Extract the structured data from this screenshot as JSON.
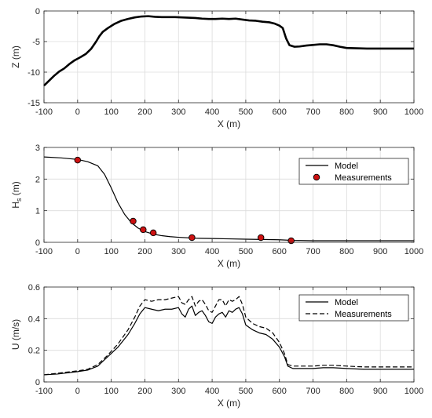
{
  "chart_data": [
    {
      "type": "line",
      "xlabel": "X (m)",
      "ylabel": "Z (m)",
      "xlim": [
        -100,
        1000
      ],
      "ylim": [
        -15,
        0
      ],
      "xticks": [
        -100,
        0,
        100,
        200,
        300,
        400,
        500,
        600,
        700,
        800,
        900,
        1000
      ],
      "yticks": [
        -15,
        -10,
        -5,
        0
      ],
      "grid": true,
      "series": [
        {
          "name": "",
          "style": "solid-thick",
          "x": [
            -100,
            -85,
            -70,
            -55,
            -40,
            -25,
            -10,
            0,
            10,
            25,
            40,
            55,
            65,
            75,
            90,
            110,
            130,
            150,
            170,
            190,
            210,
            230,
            250,
            270,
            290,
            310,
            330,
            350,
            370,
            390,
            410,
            430,
            450,
            470,
            490,
            510,
            530,
            550,
            570,
            585,
            600,
            610,
            620,
            630,
            645,
            660,
            680,
            700,
            720,
            740,
            760,
            780,
            800,
            830,
            860,
            900,
            950,
            1000
          ],
          "values": [
            -12.2,
            -11.4,
            -10.6,
            -9.9,
            -9.4,
            -8.7,
            -8.1,
            -7.8,
            -7.5,
            -7.0,
            -6.2,
            -5.0,
            -4.1,
            -3.4,
            -2.8,
            -2.1,
            -1.6,
            -1.3,
            -1.05,
            -0.9,
            -0.85,
            -0.95,
            -1.0,
            -1.0,
            -1.0,
            -1.05,
            -1.1,
            -1.15,
            -1.25,
            -1.3,
            -1.3,
            -1.25,
            -1.3,
            -1.25,
            -1.4,
            -1.55,
            -1.6,
            -1.75,
            -1.85,
            -2.05,
            -2.4,
            -2.8,
            -4.5,
            -5.6,
            -5.85,
            -5.8,
            -5.65,
            -5.55,
            -5.45,
            -5.45,
            -5.6,
            -5.85,
            -6.05,
            -6.1,
            -6.15,
            -6.15,
            -6.15,
            -6.15
          ]
        }
      ]
    },
    {
      "type": "line",
      "xlabel": "X (m)",
      "ylabel": "H",
      "ylabel_sub": "s",
      "ylabel_unit": " (m)",
      "xlim": [
        -100,
        1000
      ],
      "ylim": [
        0,
        3
      ],
      "xticks": [
        -100,
        0,
        100,
        200,
        300,
        400,
        500,
        600,
        700,
        800,
        900,
        1000
      ],
      "yticks": [
        0,
        1,
        2,
        3
      ],
      "grid": true,
      "legend": "top-right",
      "series": [
        {
          "name": "Model",
          "style": "solid",
          "x": [
            -100,
            -50,
            0,
            30,
            60,
            80,
            100,
            120,
            140,
            160,
            180,
            200,
            225,
            250,
            275,
            300,
            350,
            400,
            450,
            500,
            550,
            600,
            640,
            700,
            800,
            900,
            1000
          ],
          "values": [
            2.7,
            2.67,
            2.62,
            2.55,
            2.42,
            2.15,
            1.72,
            1.25,
            0.88,
            0.62,
            0.45,
            0.34,
            0.26,
            0.21,
            0.18,
            0.16,
            0.13,
            0.12,
            0.11,
            0.1,
            0.09,
            0.08,
            0.06,
            0.05,
            0.05,
            0.05,
            0.05
          ]
        },
        {
          "name": "Measurements",
          "style": "markers",
          "x": [
            0,
            165,
            195,
            225,
            340,
            545,
            635
          ],
          "values": [
            2.6,
            0.67,
            0.4,
            0.3,
            0.15,
            0.15,
            0.05
          ]
        }
      ]
    },
    {
      "type": "line",
      "xlabel": "X (m)",
      "ylabel": "U (m/s)",
      "xlim": [
        -100,
        1000
      ],
      "ylim": [
        0,
        0.6
      ],
      "xticks": [
        -100,
        0,
        100,
        200,
        300,
        400,
        500,
        600,
        700,
        800,
        900,
        1000
      ],
      "yticks": [
        0,
        0.2,
        0.4,
        0.6
      ],
      "grid": true,
      "legend": "top-right",
      "series": [
        {
          "name": "Model",
          "style": "solid",
          "x": [
            -100,
            -60,
            -20,
            0,
            30,
            60,
            90,
            120,
            150,
            170,
            185,
            200,
            220,
            240,
            260,
            280,
            300,
            310,
            320,
            330,
            340,
            350,
            360,
            370,
            380,
            390,
            400,
            410,
            420,
            430,
            440,
            450,
            460,
            470,
            480,
            490,
            500,
            520,
            540,
            560,
            580,
            600,
            615,
            625,
            640,
            700,
            730,
            760,
            800,
            850,
            900,
            950,
            1000
          ],
          "values": [
            0.045,
            0.05,
            0.06,
            0.065,
            0.075,
            0.1,
            0.16,
            0.22,
            0.3,
            0.37,
            0.43,
            0.47,
            0.46,
            0.45,
            0.46,
            0.46,
            0.47,
            0.43,
            0.41,
            0.46,
            0.48,
            0.42,
            0.44,
            0.45,
            0.42,
            0.38,
            0.37,
            0.41,
            0.43,
            0.44,
            0.41,
            0.45,
            0.44,
            0.46,
            0.47,
            0.43,
            0.36,
            0.33,
            0.31,
            0.3,
            0.27,
            0.22,
            0.16,
            0.1,
            0.085,
            0.085,
            0.09,
            0.09,
            0.085,
            0.08,
            0.08,
            0.08,
            0.08
          ]
        },
        {
          "name": "Measurements",
          "style": "dashed",
          "x": [
            -100,
            -60,
            -20,
            0,
            30,
            60,
            90,
            120,
            150,
            170,
            185,
            200,
            220,
            240,
            260,
            280,
            300,
            310,
            320,
            330,
            340,
            350,
            360,
            370,
            380,
            390,
            400,
            410,
            420,
            430,
            440,
            450,
            460,
            470,
            480,
            490,
            500,
            520,
            540,
            560,
            580,
            600,
            615,
            625,
            640,
            700,
            730,
            760,
            800,
            850,
            900,
            950,
            1000
          ],
          "values": [
            0.045,
            0.055,
            0.065,
            0.07,
            0.08,
            0.11,
            0.17,
            0.24,
            0.33,
            0.41,
            0.48,
            0.52,
            0.51,
            0.52,
            0.52,
            0.53,
            0.54,
            0.5,
            0.49,
            0.52,
            0.54,
            0.48,
            0.51,
            0.52,
            0.49,
            0.45,
            0.44,
            0.48,
            0.52,
            0.52,
            0.48,
            0.52,
            0.51,
            0.52,
            0.54,
            0.49,
            0.41,
            0.37,
            0.35,
            0.34,
            0.31,
            0.25,
            0.18,
            0.11,
            0.1,
            0.1,
            0.105,
            0.105,
            0.1,
            0.095,
            0.095,
            0.095,
            0.095
          ]
        }
      ]
    }
  ]
}
